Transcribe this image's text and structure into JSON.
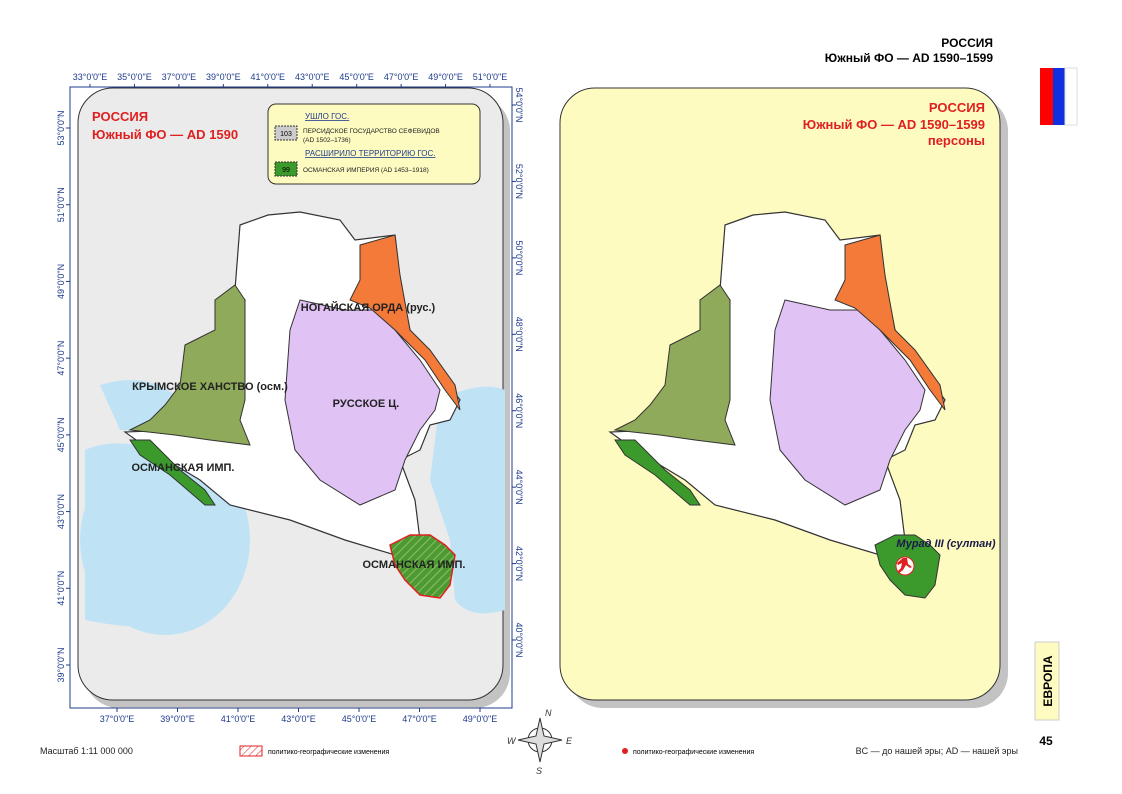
{
  "header": {
    "title": "РОССИЯ",
    "subtitle": "Южный ФО — AD 1590–1599"
  },
  "left_map": {
    "title": "РОССИЯ",
    "subtitle": "Южный ФО — AD 1590",
    "legend": {
      "lost_heading": "УШЛО ГОС.",
      "lost_code": "103",
      "lost_name": "ПЕРСИДСКОЕ ГОСУДАРСТВО СЕФЕВИДОВ",
      "lost_period": "(AD 1502–1736)",
      "gained_heading": "РАСШИРИЛО ТЕРРИТОРИЮ ГОС.",
      "gained_code": "99",
      "gained_name": "ОСМАНСКАЯ ИМПЕРИЯ (AD 1453–1918)"
    },
    "regions": [
      "НОГАЙСКАЯ ОРДА (рус.)",
      "КРЫМСКОЕ ХАНСТВО (осм.)",
      "РУССКОЕ Ц.",
      "ОСМАНСКАЯ ИМП.",
      "ОСМАНСКАЯ ИМП."
    ],
    "top_ticks": [
      "33°0'0\"E",
      "35°0'0\"E",
      "37°0'0\"E",
      "39°0'0\"E",
      "41°0'0\"E",
      "43°0'0\"E",
      "45°0'0\"E",
      "47°0'0\"E",
      "49°0'0\"E",
      "51°0'0\"E"
    ],
    "bottom_ticks": [
      "37°0'0\"E",
      "39°0'0\"E",
      "41°0'0\"E",
      "43°0'0\"E",
      "45°0'0\"E",
      "47°0'0\"E",
      "49°0'0\"E"
    ],
    "left_ticks": [
      "53°0'0\"N",
      "51°0'0\"N",
      "49°0'0\"N",
      "47°0'0\"N",
      "45°0'0\"N",
      "43°0'0\"N",
      "41°0'0\"N",
      "39°0'0\"N"
    ],
    "right_ticks": [
      "54°0'0\"N",
      "52°0'0\"N",
      "50°0'0\"N",
      "48°0'0\"N",
      "46°0'0\"N",
      "44°0'0\"N",
      "42°0'0\"N",
      "40°0'0\"N"
    ]
  },
  "right_map": {
    "title": "РОССИЯ",
    "subtitle": "Южный ФО — AD 1590–1599",
    "subtitle2": "персоны",
    "person": "Мурад III (султан)"
  },
  "compass": [
    "N",
    "W",
    "E",
    "S"
  ],
  "side_tab": "ЕВРОПА",
  "page_number": "45",
  "footer": {
    "scale": "Масштаб 1:11 000 000",
    "legend_hatch": "политико-географические изменения",
    "legend_dot": "политико-географические изменения",
    "note": "BC — до нашей эры; AD — нашей эры"
  }
}
